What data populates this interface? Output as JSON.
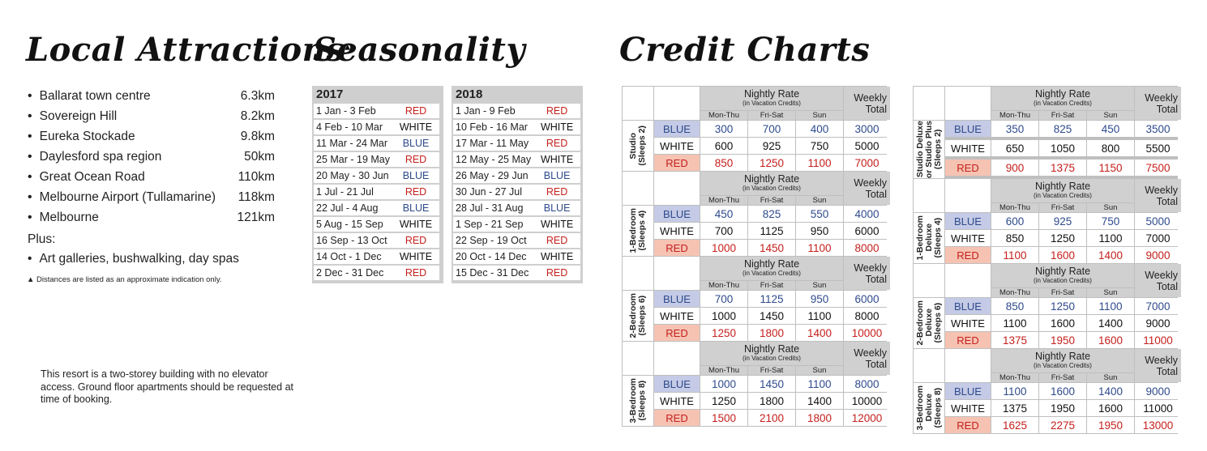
{
  "attractions": {
    "title": "Local Attractions",
    "title_mark": "▲",
    "items": [
      {
        "name": "Ballarat town centre",
        "distance": "6.3km"
      },
      {
        "name": "Sovereign Hill",
        "distance": "8.2km"
      },
      {
        "name": "Eureka Stockade",
        "distance": "9.8km"
      },
      {
        "name": "Daylesford spa region",
        "distance": "50km"
      },
      {
        "name": "Great Ocean Road",
        "distance": "110km"
      },
      {
        "name": "Melbourne Airport (Tullamarine)",
        "distance": "118km"
      },
      {
        "name": "Melbourne",
        "distance": "121km"
      }
    ],
    "plus_label": "Plus:",
    "plus_item": "Art galleries, bushwalking, day spas",
    "note": "▲ Distances are listed as an approximate indication only."
  },
  "resort_note": "This resort is a two-storey building with no elevator access. Ground floor apartments should be requested at time of booking.",
  "seasonality": {
    "title": "Seasonality",
    "tables": [
      {
        "year": "2017",
        "rows": [
          {
            "dates": "1 Jan - 3 Feb",
            "season": "RED"
          },
          {
            "dates": "4 Feb - 10 Mar",
            "season": "WHITE"
          },
          {
            "dates": "11 Mar - 24 Mar",
            "season": "BLUE"
          },
          {
            "dates": "25 Mar - 19 May",
            "season": "RED"
          },
          {
            "dates": "20 May - 30 Jun",
            "season": "BLUE"
          },
          {
            "dates": "1 Jul - 21 Jul",
            "season": "RED"
          },
          {
            "dates": "22 Jul - 4 Aug",
            "season": "BLUE"
          },
          {
            "dates": "5 Aug - 15 Sep",
            "season": "WHITE"
          },
          {
            "dates": "16 Sep - 13 Oct",
            "season": "RED"
          },
          {
            "dates": "14 Oct - 1 Dec",
            "season": "WHITE"
          },
          {
            "dates": "2 Dec - 31 Dec",
            "season": "RED"
          }
        ]
      },
      {
        "year": "2018",
        "rows": [
          {
            "dates": "1 Jan - 9 Feb",
            "season": "RED"
          },
          {
            "dates": "10 Feb - 16 Mar",
            "season": "WHITE"
          },
          {
            "dates": "17 Mar - 11 May",
            "season": "RED"
          },
          {
            "dates": "12 May - 25 May",
            "season": "WHITE"
          },
          {
            "dates": "26 May - 29 Jun",
            "season": "BLUE"
          },
          {
            "dates": "30 Jun - 27 Jul",
            "season": "RED"
          },
          {
            "dates": "28 Jul - 31 Aug",
            "season": "BLUE"
          },
          {
            "dates": "1 Sep - 21 Sep",
            "season": "WHITE"
          },
          {
            "dates": "22 Sep - 19 Oct",
            "season": "RED"
          },
          {
            "dates": "20 Oct - 14 Dec",
            "season": "WHITE"
          },
          {
            "dates": "15 Dec - 31 Dec",
            "season": "RED"
          }
        ]
      }
    ]
  },
  "credit": {
    "title": "Credit Charts",
    "header": {
      "nightly_rate": "Nightly Rate",
      "in_credits": "(in Vacation Credits)",
      "mon_thu": "Mon-Thu",
      "fri_sat": "Fri-Sat",
      "sun": "Sun",
      "weekly": "Weekly",
      "total": "Total"
    },
    "tables": [
      [
        {
          "unit": [
            "Studio",
            "(Sleeps 2)"
          ],
          "rows": [
            {
              "season": "BLUE",
              "values": [
                "300",
                "700",
                "400",
                "3000"
              ]
            },
            {
              "season": "WHITE",
              "values": [
                "600",
                "925",
                "750",
                "5000"
              ]
            },
            {
              "season": "RED",
              "values": [
                "850",
                "1250",
                "1100",
                "7000"
              ]
            }
          ]
        },
        {
          "unit": [
            "1-Bedroom",
            "(Sleeps 4)"
          ],
          "rows": [
            {
              "season": "BLUE",
              "values": [
                "450",
                "825",
                "550",
                "4000"
              ]
            },
            {
              "season": "WHITE",
              "values": [
                "700",
                "1125",
                "950",
                "6000"
              ]
            },
            {
              "season": "RED",
              "values": [
                "1000",
                "1450",
                "1100",
                "8000"
              ]
            }
          ]
        },
        {
          "unit": [
            "2-Bedroom",
            "(Sleeps 6)"
          ],
          "rows": [
            {
              "season": "BLUE",
              "values": [
                "700",
                "1125",
                "950",
                "6000"
              ]
            },
            {
              "season": "WHITE",
              "values": [
                "1000",
                "1450",
                "1100",
                "8000"
              ]
            },
            {
              "season": "RED",
              "values": [
                "1250",
                "1800",
                "1400",
                "10000"
              ]
            }
          ]
        },
        {
          "unit": [
            "3-Bedroom",
            "(Sleeps 8)"
          ],
          "rows": [
            {
              "season": "BLUE",
              "values": [
                "1000",
                "1450",
                "1100",
                "8000"
              ]
            },
            {
              "season": "WHITE",
              "values": [
                "1250",
                "1800",
                "1400",
                "10000"
              ]
            },
            {
              "season": "RED",
              "values": [
                "1500",
                "2100",
                "1800",
                "12000"
              ]
            }
          ]
        }
      ],
      [
        {
          "unit": [
            "Studio Deluxe",
            "or Studio Plus",
            "(Sleeps 2)"
          ],
          "rows": [
            {
              "season": "BLUE",
              "values": [
                "350",
                "825",
                "450",
                "3500"
              ]
            },
            {
              "season": "WHITE",
              "values": [
                "650",
                "1050",
                "800",
                "5500"
              ]
            },
            {
              "season": "RED",
              "values": [
                "900",
                "1375",
                "1150",
                "7500"
              ]
            }
          ]
        },
        {
          "unit": [
            "1-Bedroom",
            "Deluxe",
            "(Sleeps 4)"
          ],
          "rows": [
            {
              "season": "BLUE",
              "values": [
                "600",
                "925",
                "750",
                "5000"
              ]
            },
            {
              "season": "WHITE",
              "values": [
                "850",
                "1250",
                "1100",
                "7000"
              ]
            },
            {
              "season": "RED",
              "values": [
                "1100",
                "1600",
                "1400",
                "9000"
              ]
            }
          ]
        },
        {
          "unit": [
            "2-Bedroom",
            "Deluxe",
            "(Sleeps 6)"
          ],
          "rows": [
            {
              "season": "BLUE",
              "values": [
                "850",
                "1250",
                "1100",
                "7000"
              ]
            },
            {
              "season": "WHITE",
              "values": [
                "1100",
                "1600",
                "1400",
                "9000"
              ]
            },
            {
              "season": "RED",
              "values": [
                "1375",
                "1950",
                "1600",
                "11000"
              ]
            }
          ]
        },
        {
          "unit": [
            "3-Bedroom",
            "Deluxe",
            "(Sleeps 8)"
          ],
          "rows": [
            {
              "season": "BLUE",
              "values": [
                "1100",
                "1600",
                "1400",
                "9000"
              ]
            },
            {
              "season": "WHITE",
              "values": [
                "1375",
                "1950",
                "1600",
                "11000"
              ]
            },
            {
              "season": "RED",
              "values": [
                "1625",
                "2275",
                "1950",
                "13000"
              ]
            }
          ]
        }
      ]
    ]
  }
}
